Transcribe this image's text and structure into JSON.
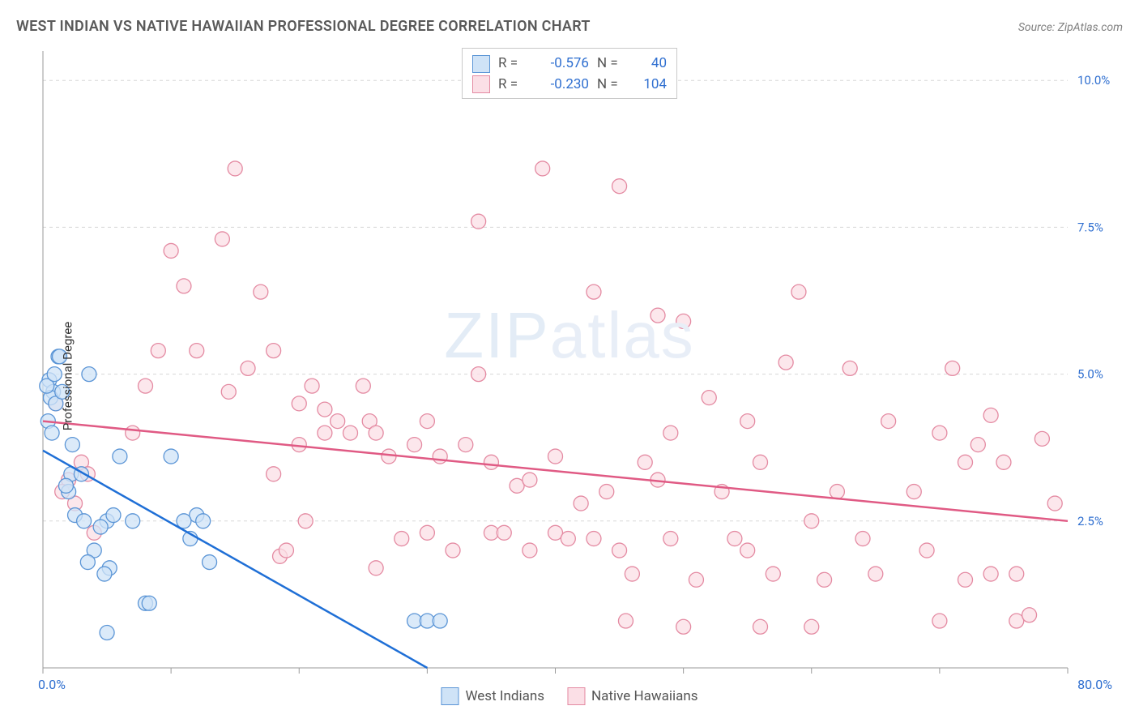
{
  "header": {
    "title": "WEST INDIAN VS NATIVE HAWAIIAN PROFESSIONAL DEGREE CORRELATION CHART",
    "source": "Source: ZipAtlas.com"
  },
  "watermark": "ZIPatlas",
  "chart": {
    "type": "scatter",
    "ylabel": "Professional Degree",
    "xlim": [
      0,
      80
    ],
    "ylim": [
      0,
      10.5
    ],
    "x_ticks": [
      0,
      10,
      20,
      30,
      40,
      50,
      60,
      70,
      80
    ],
    "y_gridlines": [
      2.5,
      5.0,
      7.5,
      10.0
    ],
    "y_tick_labels": [
      "2.5%",
      "5.0%",
      "7.5%",
      "10.0%"
    ],
    "x_min_label": "0.0%",
    "x_max_label": "80.0%",
    "background_color": "#ffffff",
    "grid_color": "#d8d8d8",
    "grid_dash": "4,4",
    "axis_color": "#9a9a9a",
    "label_color": "#2f6fd0",
    "marker_radius": 9,
    "marker_stroke_width": 1.3,
    "line_width": 2.5,
    "series": {
      "west_indians": {
        "label": "West Indians",
        "fill": "#cfe3f7",
        "stroke": "#5b95d6",
        "line_color": "#1f6fd6",
        "R": "-0.576",
        "N": "40",
        "regression": {
          "x1": 0,
          "y1": 3.7,
          "x2": 30,
          "y2": 0
        },
        "points": [
          [
            0.5,
            4.9
          ],
          [
            0.8,
            4.7
          ],
          [
            0.6,
            4.6
          ],
          [
            1.2,
            5.3
          ],
          [
            0.4,
            4.2
          ],
          [
            1.0,
            4.5
          ],
          [
            0.7,
            4.0
          ],
          [
            1.5,
            4.7
          ],
          [
            0.3,
            4.8
          ],
          [
            0.9,
            5.0
          ],
          [
            2.0,
            3.0
          ],
          [
            2.2,
            3.3
          ],
          [
            3.0,
            3.3
          ],
          [
            2.5,
            2.6
          ],
          [
            3.2,
            2.5
          ],
          [
            1.8,
            3.1
          ],
          [
            4.0,
            2.0
          ],
          [
            3.5,
            1.8
          ],
          [
            5.0,
            2.5
          ],
          [
            5.5,
            2.6
          ],
          [
            4.5,
            2.4
          ],
          [
            2.3,
            3.8
          ],
          [
            6.0,
            3.6
          ],
          [
            7.0,
            2.5
          ],
          [
            5.2,
            1.7
          ],
          [
            4.8,
            1.6
          ],
          [
            8.0,
            1.1
          ],
          [
            8.3,
            1.1
          ],
          [
            5.0,
            0.6
          ],
          [
            10.0,
            3.6
          ],
          [
            12.0,
            2.6
          ],
          [
            11.0,
            2.5
          ],
          [
            12.5,
            2.5
          ],
          [
            11.5,
            2.2
          ],
          [
            13.0,
            1.8
          ],
          [
            29.0,
            0.8
          ],
          [
            30.0,
            0.8
          ],
          [
            31.0,
            0.8
          ],
          [
            3.6,
            5.0
          ],
          [
            1.3,
            5.3
          ]
        ]
      },
      "native_hawaiians": {
        "label": "Native Hawaiians",
        "fill": "#fbdfe6",
        "stroke": "#e48aa2",
        "line_color": "#e05a84",
        "R": "-0.230",
        "N": "104",
        "regression": {
          "x1": 0,
          "y1": 4.2,
          "x2": 80,
          "y2": 2.5
        },
        "points": [
          [
            1,
            4.5
          ],
          [
            2,
            3.2
          ],
          [
            3,
            3.5
          ],
          [
            2.5,
            2.8
          ],
          [
            4,
            2.3
          ],
          [
            1.5,
            3.0
          ],
          [
            3.5,
            3.3
          ],
          [
            10,
            7.1
          ],
          [
            11,
            6.5
          ],
          [
            14,
            7.3
          ],
          [
            15,
            8.5
          ],
          [
            7,
            4.0
          ],
          [
            8,
            4.8
          ],
          [
            9,
            5.4
          ],
          [
            12,
            5.4
          ],
          [
            14.5,
            4.7
          ],
          [
            17,
            6.4
          ],
          [
            16,
            5.1
          ],
          [
            18,
            5.4
          ],
          [
            18.5,
            1.9
          ],
          [
            18,
            3.3
          ],
          [
            19,
            2.0
          ],
          [
            20,
            4.5
          ],
          [
            20,
            3.8
          ],
          [
            20.5,
            2.5
          ],
          [
            21,
            4.8
          ],
          [
            22,
            4.0
          ],
          [
            22,
            4.4
          ],
          [
            23,
            4.2
          ],
          [
            24,
            4.0
          ],
          [
            25,
            4.8
          ],
          [
            25.5,
            4.2
          ],
          [
            26,
            4.0
          ],
          [
            26,
            1.7
          ],
          [
            27,
            3.6
          ],
          [
            28,
            2.2
          ],
          [
            29,
            3.8
          ],
          [
            30,
            4.2
          ],
          [
            30,
            2.3
          ],
          [
            31,
            3.6
          ],
          [
            32,
            2.0
          ],
          [
            33,
            3.8
          ],
          [
            34,
            7.6
          ],
          [
            34,
            5.0
          ],
          [
            35,
            3.5
          ],
          [
            35,
            2.3
          ],
          [
            36,
            2.3
          ],
          [
            37,
            3.1
          ],
          [
            38,
            2.0
          ],
          [
            38,
            3.2
          ],
          [
            39,
            8.5
          ],
          [
            40,
            3.6
          ],
          [
            40,
            2.3
          ],
          [
            41,
            2.2
          ],
          [
            42,
            2.8
          ],
          [
            43,
            2.2
          ],
          [
            43,
            6.4
          ],
          [
            44,
            3.0
          ],
          [
            45,
            2.0
          ],
          [
            45,
            8.2
          ],
          [
            45.5,
            0.8
          ],
          [
            46,
            1.6
          ],
          [
            47,
            3.5
          ],
          [
            48,
            3.2
          ],
          [
            48,
            6.0
          ],
          [
            49,
            2.2
          ],
          [
            49,
            4.0
          ],
          [
            50,
            5.9
          ],
          [
            50,
            0.7
          ],
          [
            51,
            1.5
          ],
          [
            52,
            4.6
          ],
          [
            53,
            3.0
          ],
          [
            54,
            2.2
          ],
          [
            55,
            2.0
          ],
          [
            55,
            4.2
          ],
          [
            56,
            3.5
          ],
          [
            56,
            0.7
          ],
          [
            57,
            1.6
          ],
          [
            58,
            5.2
          ],
          [
            59,
            6.4
          ],
          [
            60,
            2.5
          ],
          [
            60,
            0.7
          ],
          [
            61,
            1.5
          ],
          [
            62,
            3.0
          ],
          [
            63,
            5.1
          ],
          [
            64,
            2.2
          ],
          [
            65,
            1.6
          ],
          [
            66,
            4.2
          ],
          [
            68,
            3.0
          ],
          [
            69,
            2.0
          ],
          [
            70,
            4.0
          ],
          [
            70,
            0.8
          ],
          [
            71,
            5.1
          ],
          [
            72,
            1.5
          ],
          [
            72,
            3.5
          ],
          [
            73,
            3.8
          ],
          [
            74,
            1.6
          ],
          [
            74,
            4.3
          ],
          [
            75,
            3.5
          ],
          [
            76,
            1.6
          ],
          [
            76,
            0.8
          ],
          [
            77,
            0.9
          ],
          [
            78,
            3.9
          ],
          [
            79,
            2.8
          ]
        ]
      }
    }
  },
  "legend_top": [
    {
      "swatch": "west_indians",
      "r_label": "R =",
      "r_val": "-0.576",
      "n_label": "N =",
      "n_val": "40"
    },
    {
      "swatch": "native_hawaiians",
      "r_label": "R =",
      "r_val": "-0.230",
      "n_label": "N =",
      "n_val": "104"
    }
  ],
  "legend_bottom": [
    {
      "swatch": "west_indians",
      "label": "West Indians"
    },
    {
      "swatch": "native_hawaiians",
      "label": "Native Hawaiians"
    }
  ]
}
